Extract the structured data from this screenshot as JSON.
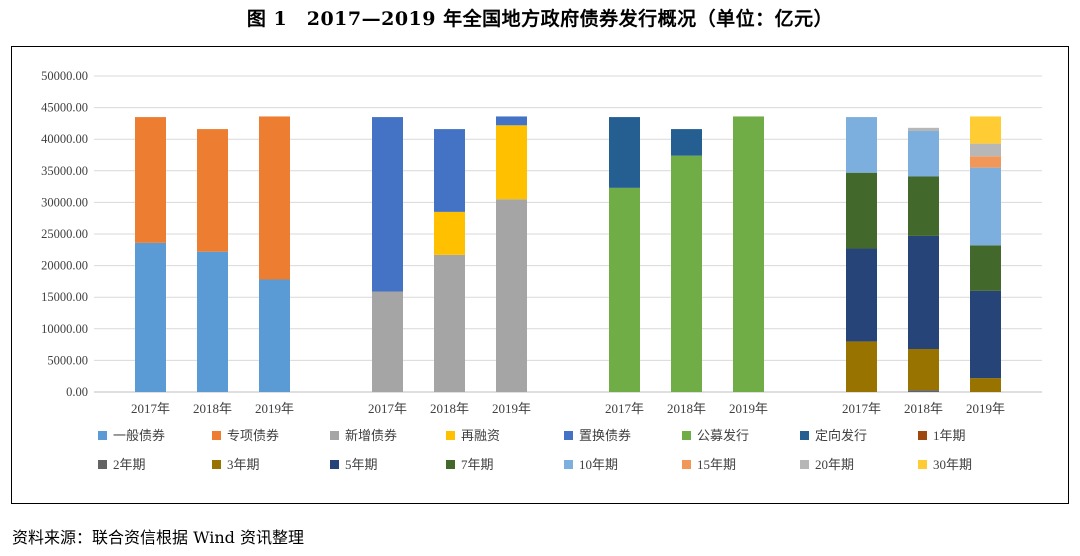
{
  "header": {
    "title": "图 1　2017—2019 年全国地方政府债券发行概况（单位：亿元）"
  },
  "footer": {
    "source": "资料来源：联合资信根据 Wind 资讯整理"
  },
  "chart_data": {
    "type": "bar",
    "stacked": true,
    "title": "",
    "xlabel": "",
    "ylabel": "",
    "ylim": [
      0,
      50000
    ],
    "yticks": [
      "0.00",
      "5000.00",
      "10000.00",
      "15000.00",
      "20000.00",
      "25000.00",
      "30000.00",
      "35000.00",
      "40000.00",
      "45000.00",
      "50000.00"
    ],
    "grid": true,
    "legend_position": "bottom",
    "groups": [
      {
        "categories": [
          "2017年",
          "2018年",
          "2019年"
        ],
        "series": [
          {
            "name": "一般债券",
            "color": "#5b9bd5",
            "values": [
              23600,
              22200,
              17800
            ]
          },
          {
            "name": "专项债券",
            "color": "#ed7d31",
            "values": [
              19900,
              19400,
              25800
            ]
          }
        ]
      },
      {
        "categories": [
          "2017年",
          "2018年",
          "2019年"
        ],
        "series": [
          {
            "name": "新增债券",
            "color": "#a5a5a5",
            "values": [
              15900,
              21700,
              30500
            ]
          },
          {
            "name": "再融资",
            "color": "#ffc000",
            "values": [
              0,
              6800,
              11700
            ]
          },
          {
            "name": "置换债券",
            "color": "#4472c4",
            "values": [
              27600,
              13100,
              1400
            ]
          }
        ]
      },
      {
        "categories": [
          "2017年",
          "2018年",
          "2019年"
        ],
        "series": [
          {
            "name": "公募发行",
            "color": "#70ad47",
            "values": [
              32300,
              37400,
              43600
            ]
          },
          {
            "name": "定向发行",
            "color": "#255e91",
            "values": [
              11200,
              4200,
              0
            ]
          }
        ]
      },
      {
        "categories": [
          "2017年",
          "2018年",
          "2019年"
        ],
        "series": [
          {
            "name": "1年期",
            "color": "#9e480e",
            "values": [
              0,
              0,
              0
            ]
          },
          {
            "name": "2年期",
            "color": "#636363",
            "values": [
              0,
              300,
              0
            ]
          },
          {
            "name": "3年期",
            "color": "#997300",
            "values": [
              8000,
              6500,
              2200
            ]
          },
          {
            "name": "5年期",
            "color": "#264478",
            "values": [
              14700,
              17900,
              13800
            ]
          },
          {
            "name": "7年期",
            "color": "#43682b",
            "values": [
              12000,
              9400,
              7200
            ]
          },
          {
            "name": "10年期",
            "color": "#7cafdd",
            "values": [
              8800,
              7200,
              12300
            ]
          },
          {
            "name": "15年期",
            "color": "#f1975a",
            "values": [
              0,
              0,
              1800
            ]
          },
          {
            "name": "20年期",
            "color": "#b7b7b7",
            "values": [
              0,
              500,
              2000
            ]
          },
          {
            "name": "30年期",
            "color": "#ffcd33",
            "values": [
              0,
              0,
              4300
            ]
          }
        ]
      }
    ],
    "legend": [
      [
        "一般债券",
        "#5b9bd5"
      ],
      [
        "专项债券",
        "#ed7d31"
      ],
      [
        "新增债券",
        "#a5a5a5"
      ],
      [
        "再融资",
        "#ffc000"
      ],
      [
        "置换债券",
        "#4472c4"
      ],
      [
        "公募发行",
        "#70ad47"
      ],
      [
        "定向发行",
        "#255e91"
      ],
      [
        "1年期",
        "#9e480e"
      ],
      [
        "2年期",
        "#636363"
      ],
      [
        "3年期",
        "#997300"
      ],
      [
        "5年期",
        "#264478"
      ],
      [
        "7年期",
        "#43682b"
      ],
      [
        "10年期",
        "#7cafdd"
      ],
      [
        "15年期",
        "#f1975a"
      ],
      [
        "20年期",
        "#b7b7b7"
      ],
      [
        "30年期",
        "#ffcd33"
      ]
    ]
  }
}
